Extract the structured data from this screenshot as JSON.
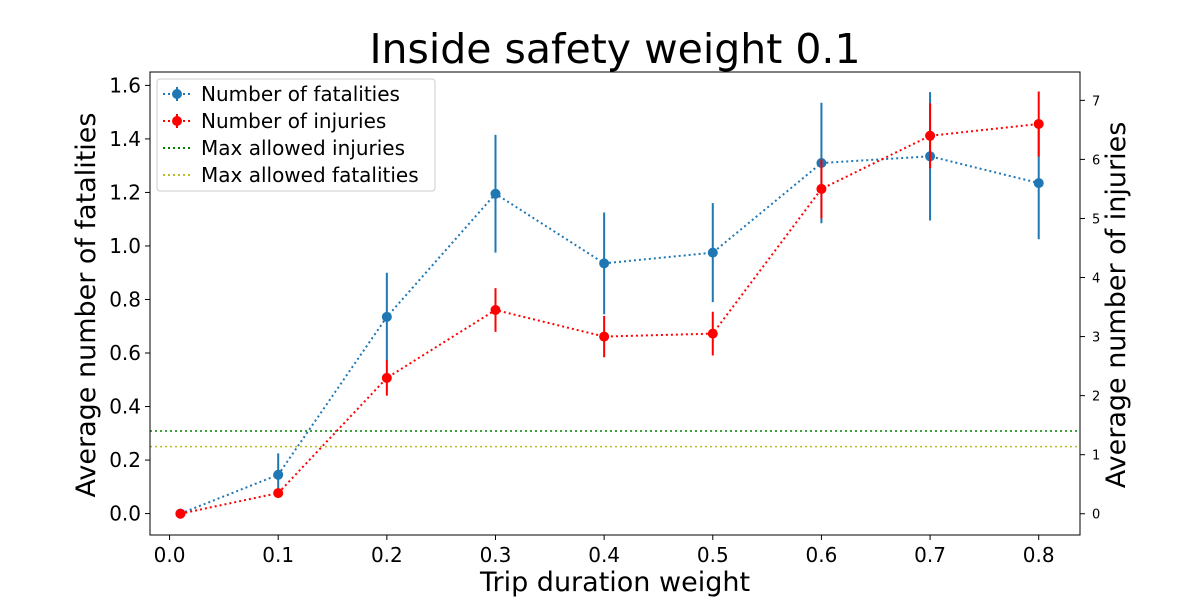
{
  "chart_data": {
    "type": "line",
    "title": "Inside safety weight 0.1",
    "xlabel": "Trip duration weight",
    "ylabel": "Average number of fatalities",
    "ylabel_right": "Average number of injuries",
    "x": [
      0.01,
      0.1,
      0.2,
      0.3,
      0.4,
      0.5,
      0.6,
      0.7,
      0.8
    ],
    "xlim": [
      -0.018,
      0.838
    ],
    "xticks": [
      "0.0",
      "0.1",
      "0.2",
      "0.3",
      "0.4",
      "0.5",
      "0.6",
      "0.7",
      "0.8"
    ],
    "ylim": [
      -0.08,
      1.65
    ],
    "yticks": [
      "0.0",
      "0.2",
      "0.4",
      "0.6",
      "0.8",
      "1.0",
      "1.2",
      "1.4",
      "1.6"
    ],
    "ylim_right": [
      -0.36,
      7.48
    ],
    "yticks_right": [
      "0",
      "1",
      "2",
      "3",
      "4",
      "5",
      "6",
      "7"
    ],
    "grid": false,
    "legend_position": "top-left",
    "series": [
      {
        "name": "Number of fatalities",
        "axis": "left",
        "color": "#1f77b4",
        "values": [
          0.0,
          0.145,
          0.735,
          1.195,
          0.935,
          0.975,
          1.31,
          1.335,
          1.235
        ],
        "errors": [
          0.0,
          0.08,
          0.165,
          0.22,
          0.19,
          0.185,
          0.225,
          0.24,
          0.21
        ]
      },
      {
        "name": "Number of injuries",
        "axis": "right",
        "color": "#ff0000",
        "values": [
          0.0,
          0.35,
          2.3,
          3.45,
          3.0,
          3.05,
          5.5,
          6.4,
          6.6
        ],
        "errors": [
          0.0,
          0.0,
          0.3,
          0.37,
          0.35,
          0.37,
          0.5,
          0.55,
          0.55
        ]
      }
    ],
    "reference_lines": [
      {
        "name": "Max allowed injuries",
        "color": "#008000",
        "axis": "right",
        "value": 1.4
      },
      {
        "name": "Max allowed fatalities",
        "color": "#bcbd22",
        "axis": "left",
        "value": 0.25
      }
    ]
  }
}
